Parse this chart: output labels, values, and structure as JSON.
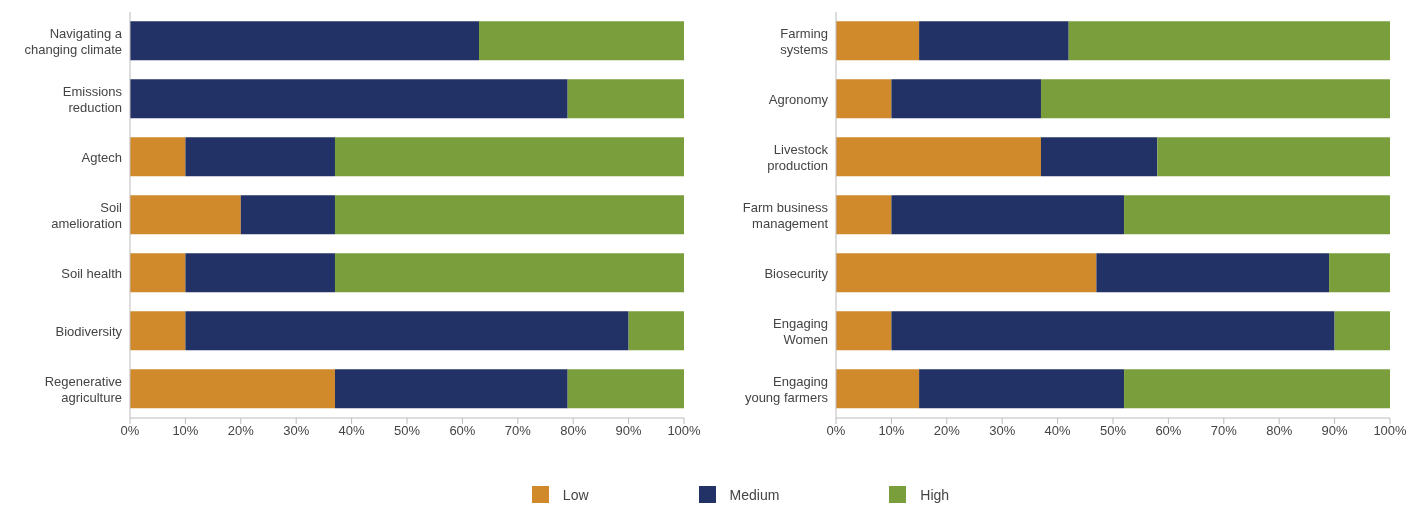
{
  "chart_data": [
    {
      "type": "bar",
      "orientation": "horizontal",
      "stacked": true,
      "categories": [
        "Navigating a\nchanging climate",
        "Emissions\nreduction",
        "Agtech",
        "Soil\namelioration",
        "Soil health",
        "Biodiversity",
        "Regenerative\nagriculture"
      ],
      "series": [
        {
          "name": "Low",
          "color": "#d08a2c",
          "values": [
            0,
            0,
            10,
            20,
            10,
            10,
            37
          ]
        },
        {
          "name": "Medium",
          "color": "#233266",
          "values": [
            63,
            79,
            27,
            17,
            27,
            80,
            42
          ]
        },
        {
          "name": "High",
          "color": "#7a9e3c",
          "values": [
            37,
            21,
            63,
            63,
            63,
            10,
            21
          ]
        }
      ],
      "xlim": [
        0,
        100
      ],
      "xticks": [
        {
          "value": 0,
          "label": "0%"
        },
        {
          "value": 10,
          "label": "10%"
        },
        {
          "value": 20,
          "label": "20%"
        },
        {
          "value": 30,
          "label": "30%"
        },
        {
          "value": 40,
          "label": "40%"
        },
        {
          "value": 50,
          "label": "50%"
        },
        {
          "value": 60,
          "label": "60%"
        },
        {
          "value": 70,
          "label": "70%"
        },
        {
          "value": 80,
          "label": "80%"
        },
        {
          "value": 90,
          "label": "90%"
        },
        {
          "value": 100,
          "label": "100%"
        }
      ],
      "grid": false,
      "legend": "bottom"
    },
    {
      "type": "bar",
      "orientation": "horizontal",
      "stacked": true,
      "categories": [
        "Farming\nsystems",
        "Agronomy",
        "Livestock\nproduction",
        "Farm business\nmanagement",
        "Biosecurity",
        "Engaging\nWomen",
        "Engaging\nyoung farmers"
      ],
      "series": [
        {
          "color": "#d08a2c",
          "values": [
            15,
            10,
            37,
            10,
            47,
            10,
            15
          ]
        },
        {
          "color": "#233266",
          "values": [
            27,
            27,
            21,
            42,
            42,
            80,
            37
          ]
        },
        {
          "color": "#7a9e3c",
          "values": [
            58,
            63,
            42,
            48,
            11,
            10,
            48
          ]
        }
      ],
      "xlim": [
        0,
        100
      ],
      "xticks": [
        {
          "value": 0,
          "label": "0%"
        },
        {
          "value": 10,
          "label": "10%"
        },
        {
          "value": 20,
          "label": "20%"
        },
        {
          "value": 30,
          "label": "30%"
        },
        {
          "value": 40,
          "label": "40%"
        },
        {
          "value": 50,
          "label": "50%"
        },
        {
          "value": 60,
          "label": "60%"
        },
        {
          "value": 70,
          "label": "70%"
        },
        {
          "value": 80,
          "label": "80%"
        },
        {
          "value": 90,
          "label": "90%"
        },
        {
          "value": 100,
          "label": "100%"
        }
      ],
      "grid": false
    }
  ]
}
